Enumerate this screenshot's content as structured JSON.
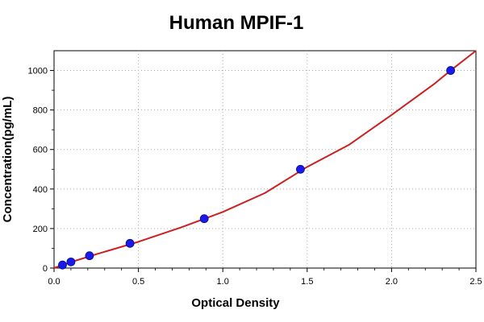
{
  "chart_data": {
    "type": "scatter",
    "title": "Human MPIF-1",
    "xlabel": "Optical Density",
    "ylabel": "Concentration(pg/mL)",
    "xlim": [
      0,
      2.5
    ],
    "ylim": [
      0,
      1100
    ],
    "x_ticks": [
      0.0,
      0.5,
      1.0,
      1.5,
      2.0,
      2.5
    ],
    "x_tick_labels": [
      "0.0",
      "0.5",
      "1.0",
      "1.5",
      "2.0",
      "2.5"
    ],
    "y_ticks": [
      0,
      200,
      400,
      600,
      800,
      1000
    ],
    "y_tick_labels": [
      "0",
      "200",
      "400",
      "600",
      "800",
      "1000"
    ],
    "grid": true,
    "series": [
      {
        "type": "scatter",
        "color": "#1a1aee",
        "points": [
          {
            "x": 0.05,
            "y": 15.6
          },
          {
            "x": 0.1,
            "y": 31.2
          },
          {
            "x": 0.21,
            "y": 62.5
          },
          {
            "x": 0.45,
            "y": 125
          },
          {
            "x": 0.89,
            "y": 250
          },
          {
            "x": 1.46,
            "y": 500
          },
          {
            "x": 2.35,
            "y": 1000
          }
        ]
      },
      {
        "type": "line",
        "color": "#cc2020",
        "points": [
          {
            "x": 0.0,
            "y": 0
          },
          {
            "x": 0.1,
            "y": 30
          },
          {
            "x": 0.25,
            "y": 70
          },
          {
            "x": 0.5,
            "y": 133
          },
          {
            "x": 0.75,
            "y": 205
          },
          {
            "x": 1.0,
            "y": 284
          },
          {
            "x": 1.25,
            "y": 380
          },
          {
            "x": 1.5,
            "y": 512
          },
          {
            "x": 1.75,
            "y": 625
          },
          {
            "x": 2.0,
            "y": 775
          },
          {
            "x": 2.25,
            "y": 930
          },
          {
            "x": 2.35,
            "y": 1000
          },
          {
            "x": 2.5,
            "y": 1100
          }
        ]
      }
    ]
  }
}
